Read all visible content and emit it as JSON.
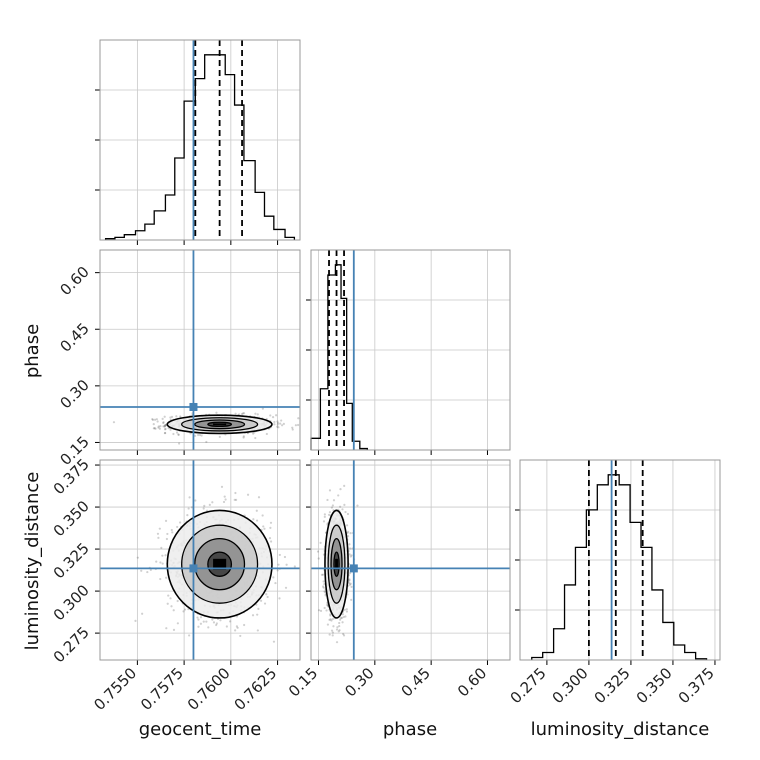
{
  "figure_title": "",
  "colors": {
    "truth": "#4682b4",
    "hist": "#000000",
    "grid": "#c8c8c8",
    "frame": "#999999",
    "points": "#555555"
  },
  "chart_data": [
    {
      "panel": "hist-geocent_time",
      "type": "histogram",
      "parameter": "geocent_time",
      "xlim": [
        0.753,
        0.7637
      ],
      "xticks": [
        0.755,
        0.7575,
        0.76,
        0.7625
      ],
      "xtick_labels": [
        "0.7550",
        "0.7575",
        "0.7600",
        "0.7625"
      ],
      "bins": [
        0.7533,
        0.7538,
        0.7543,
        0.7549,
        0.7554,
        0.7559,
        0.7565,
        0.757,
        0.7575,
        0.7581,
        0.7586,
        0.7591,
        0.7597,
        0.7602,
        0.7607,
        0.7613,
        0.7618,
        0.7623,
        0.7629,
        0.7634
      ],
      "counts": [
        1,
        2,
        4,
        7,
        12,
        22,
        34,
        62,
        105,
        122,
        140,
        140,
        125,
        102,
        60,
        36,
        18,
        8,
        2
      ],
      "quantiles": [
        0.7581,
        0.7594,
        0.7606
      ],
      "truth": 0.758
    },
    {
      "panel": "hist-phase",
      "type": "histogram",
      "parameter": "phase",
      "xlim": [
        0.13,
        0.66
      ],
      "xticks": [
        0.15,
        0.3,
        0.45,
        0.6
      ],
      "xtick_labels": [
        "0.15",
        "0.30",
        "0.45",
        "0.60"
      ],
      "bins": [
        0.13,
        0.155,
        0.175,
        0.195,
        0.21,
        0.225,
        0.24,
        0.26,
        0.28
      ],
      "counts": [
        8,
        42,
        120,
        127,
        104,
        32,
        6,
        1
      ],
      "quantiles": [
        0.178,
        0.198,
        0.218
      ],
      "truth": 0.244
    },
    {
      "panel": "hist-luminosity_distance",
      "type": "histogram",
      "parameter": "luminosity_distance",
      "xlim": [
        0.259,
        0.378
      ],
      "xticks": [
        0.275,
        0.3,
        0.325,
        0.35,
        0.375
      ],
      "xtick_labels": [
        "0.275",
        "0.300",
        "0.325",
        "0.350",
        "0.375"
      ],
      "bins": [
        0.266,
        0.2725,
        0.279,
        0.2855,
        0.292,
        0.2985,
        0.305,
        0.3115,
        0.318,
        0.3245,
        0.331,
        0.3375,
        0.344,
        0.3505,
        0.357,
        0.3635,
        0.37
      ],
      "counts": [
        2,
        6,
        25,
        60,
        90,
        120,
        140,
        148,
        140,
        110,
        90,
        56,
        30,
        12,
        6,
        1
      ],
      "quantiles": [
        0.3,
        0.316,
        0.332
      ],
      "truth": 0.3135
    },
    {
      "panel": "scatter-phase-vs-geocent_time",
      "type": "scatter",
      "x_parameter": "geocent_time",
      "y_parameter": "phase",
      "xlim": [
        0.753,
        0.7637
      ],
      "ylim": [
        0.13,
        0.66
      ],
      "yticks": [
        0.15,
        0.3,
        0.45,
        0.6
      ],
      "ytick_labels": [
        "0.15",
        "0.30",
        "0.45",
        "0.60"
      ],
      "density_center": [
        0.7594,
        0.198
      ],
      "density_spread": [
        0.0014,
        0.022
      ],
      "truth": [
        0.758,
        0.244
      ]
    },
    {
      "panel": "scatter-luminosity_distance-vs-geocent_time",
      "type": "scatter",
      "x_parameter": "geocent_time",
      "y_parameter": "luminosity_distance",
      "xlim": [
        0.753,
        0.7637
      ],
      "ylim": [
        0.259,
        0.378
      ],
      "yticks": [
        0.275,
        0.3,
        0.325,
        0.35,
        0.375
      ],
      "ytick_labels": [
        "0.275",
        "0.300",
        "0.325",
        "0.350",
        "0.375"
      ],
      "density_center": [
        0.7594,
        0.316
      ],
      "density_spread": [
        0.0014,
        0.016
      ],
      "truth": [
        0.758,
        0.3135
      ]
    },
    {
      "panel": "scatter-luminosity_distance-vs-phase",
      "type": "scatter",
      "x_parameter": "phase",
      "y_parameter": "luminosity_distance",
      "xlim": [
        0.13,
        0.66
      ],
      "ylim": [
        0.259,
        0.378
      ],
      "density_center": [
        0.198,
        0.316
      ],
      "density_spread": [
        0.022,
        0.016
      ],
      "truth": [
        0.244,
        0.3135
      ]
    }
  ],
  "axis_titles": {
    "x_geocent_time": "geocent_time",
    "x_phase": "phase",
    "x_luminosity_distance": "luminosity_distance",
    "y_phase": "phase",
    "y_luminosity_distance": "luminosity_distance"
  }
}
